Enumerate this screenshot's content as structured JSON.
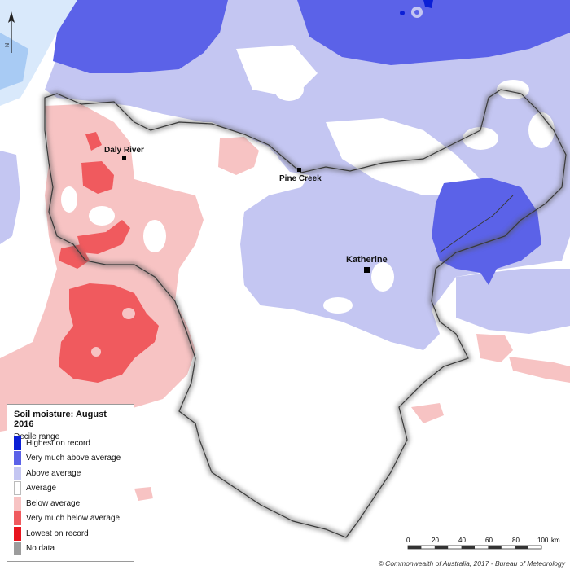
{
  "map": {
    "legend": {
      "title": "Soil moisture: August 2016",
      "subtitle": "Decile range",
      "items": [
        {
          "label": "Highest on record",
          "color": "#0b1fd6"
        },
        {
          "label": "Very much above average",
          "color": "#5b62e8"
        },
        {
          "label": "Above average",
          "color": "#c4c6f2"
        },
        {
          "label": "Average",
          "color": "#ffffff"
        },
        {
          "label": "Below average",
          "color": "#f7c3c3"
        },
        {
          "label": "Very much below average",
          "color": "#f05a5e"
        },
        {
          "label": "Lowest on record",
          "color": "#e8141e"
        },
        {
          "label": "No data",
          "color": "#9c9c9c"
        }
      ]
    },
    "places": [
      {
        "name": "Daly River"
      },
      {
        "name": "Pine Creek"
      },
      {
        "name": "Katherine"
      }
    ],
    "scale": {
      "ticks": [
        "0",
        "20",
        "40",
        "60",
        "80",
        "100"
      ],
      "unit": "km"
    },
    "north_label": "N",
    "copyright": "© Commonwealth of Australia, 2017 - Bureau of Meteorology",
    "colors": {
      "sea": "#d9e9fb",
      "sea_deep": "#6fa6ea",
      "region_outline": "#3a3a3a"
    }
  }
}
